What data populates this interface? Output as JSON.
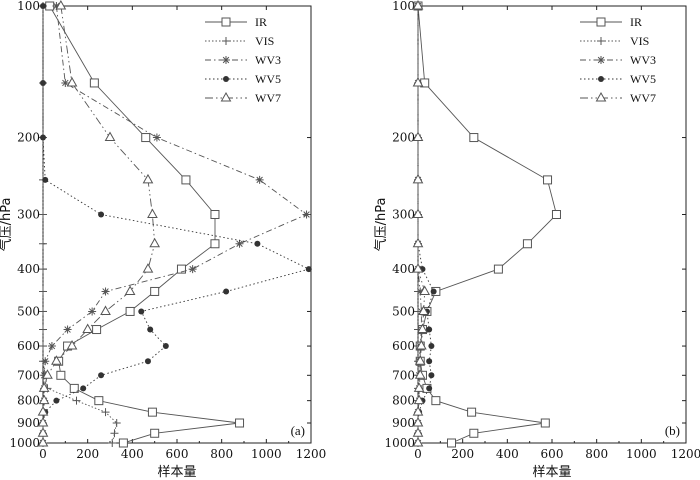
{
  "figure": {
    "ylabel": "气压/hPa",
    "xlabel": "样本量"
  },
  "legend_entries": [
    "IR",
    "VIS",
    "WV3",
    "WV5",
    "WV7"
  ],
  "series_styles": [
    {
      "name": "IR",
      "color": "#555555",
      "marker": "square",
      "dash": ""
    },
    {
      "name": "VIS",
      "color": "#555555",
      "marker": "plus",
      "dash": "1.5,2"
    },
    {
      "name": "WV3",
      "color": "#555555",
      "marker": "asterisk",
      "dash": "6,3,1.5,3"
    },
    {
      "name": "WV5",
      "color": "#333333",
      "marker": "dot",
      "dash": "1.5,2.5"
    },
    {
      "name": "WV7",
      "color": "#555555",
      "marker": "triangle",
      "dash": "8,3,1.5,3,1.5,3"
    }
  ],
  "chart_data": [
    {
      "type": "line",
      "panel_label": "(a)",
      "xlabel": "样本量",
      "ylabel": "气压/hPa",
      "xlim": [
        0,
        1200
      ],
      "ylim": [
        100,
        1000
      ],
      "yscale": "log",
      "inverted_y": true,
      "xticks": [
        0,
        200,
        400,
        600,
        800,
        1000,
        1200
      ],
      "yticks": [
        100,
        200,
        300,
        400,
        500,
        600,
        700,
        800,
        900,
        1000
      ],
      "legend_position": "top-right",
      "series": [
        {
          "name": "IR",
          "points": [
            [
              30,
              100
            ],
            [
              230,
              150
            ],
            [
              460,
              200
            ],
            [
              640,
              250
            ],
            [
              770,
              300
            ],
            [
              770,
              350
            ],
            [
              620,
              400
            ],
            [
              500,
              450
            ],
            [
              390,
              500
            ],
            [
              240,
              550
            ],
            [
              110,
              600
            ],
            [
              70,
              650
            ],
            [
              80,
              700
            ],
            [
              140,
              750
            ],
            [
              250,
              800
            ],
            [
              490,
              850
            ],
            [
              880,
              900
            ],
            [
              500,
              950
            ],
            [
              360,
              1000
            ]
          ]
        },
        {
          "name": "VIS",
          "points": [
            [
              0,
              100
            ],
            [
              0,
              150
            ],
            [
              0,
              200
            ],
            [
              0,
              250
            ],
            [
              0,
              300
            ],
            [
              0,
              350
            ],
            [
              0,
              400
            ],
            [
              0,
              450
            ],
            [
              0,
              500
            ],
            [
              0,
              550
            ],
            [
              0,
              600
            ],
            [
              0,
              650
            ],
            [
              10,
              700
            ],
            [
              20,
              750
            ],
            [
              150,
              800
            ],
            [
              280,
              850
            ],
            [
              330,
              900
            ],
            [
              320,
              950
            ],
            [
              310,
              1000
            ]
          ]
        },
        {
          "name": "WV3",
          "points": [
            [
              60,
              100
            ],
            [
              100,
              150
            ],
            [
              510,
              200
            ],
            [
              970,
              250
            ],
            [
              1180,
              300
            ],
            [
              880,
              350
            ],
            [
              670,
              400
            ],
            [
              280,
              450
            ],
            [
              220,
              500
            ],
            [
              110,
              550
            ],
            [
              40,
              600
            ],
            [
              10,
              650
            ],
            [
              5,
              700
            ],
            [
              5,
              750
            ],
            [
              5,
              800
            ],
            [
              5,
              850
            ],
            [
              0,
              900
            ],
            [
              0,
              950
            ],
            [
              0,
              1000
            ]
          ]
        },
        {
          "name": "WV5",
          "points": [
            [
              0,
              100
            ],
            [
              0,
              150
            ],
            [
              0,
              200
            ],
            [
              10,
              250
            ],
            [
              260,
              300
            ],
            [
              960,
              350
            ],
            [
              1190,
              400
            ],
            [
              820,
              450
            ],
            [
              440,
              500
            ],
            [
              480,
              550
            ],
            [
              550,
              600
            ],
            [
              470,
              650
            ],
            [
              260,
              700
            ],
            [
              180,
              750
            ],
            [
              60,
              800
            ],
            [
              10,
              850
            ],
            [
              0,
              900
            ],
            [
              0,
              950
            ],
            [
              0,
              1000
            ]
          ]
        },
        {
          "name": "WV7",
          "points": [
            [
              80,
              100
            ],
            [
              130,
              150
            ],
            [
              300,
              200
            ],
            [
              470,
              250
            ],
            [
              490,
              300
            ],
            [
              500,
              350
            ],
            [
              470,
              400
            ],
            [
              390,
              450
            ],
            [
              280,
              500
            ],
            [
              200,
              550
            ],
            [
              130,
              600
            ],
            [
              60,
              650
            ],
            [
              20,
              700
            ],
            [
              5,
              750
            ],
            [
              5,
              800
            ],
            [
              0,
              850
            ],
            [
              0,
              900
            ],
            [
              0,
              950
            ],
            [
              0,
              1000
            ]
          ]
        }
      ]
    },
    {
      "type": "line",
      "panel_label": "(b)",
      "xlabel": "样本量",
      "ylabel": "气压/hPa",
      "xlim": [
        0,
        1200
      ],
      "ylim": [
        100,
        1000
      ],
      "yscale": "log",
      "inverted_y": true,
      "xticks": [
        0,
        200,
        400,
        600,
        800,
        1000,
        1200
      ],
      "yticks": [
        100,
        200,
        300,
        400,
        500,
        600,
        700,
        800,
        900,
        1000
      ],
      "legend_position": "top-right",
      "series": [
        {
          "name": "IR",
          "points": [
            [
              0,
              100
            ],
            [
              30,
              150
            ],
            [
              250,
              200
            ],
            [
              580,
              250
            ],
            [
              620,
              300
            ],
            [
              490,
              350
            ],
            [
              360,
              400
            ],
            [
              80,
              450
            ],
            [
              40,
              500
            ],
            [
              20,
              550
            ],
            [
              10,
              600
            ],
            [
              10,
              650
            ],
            [
              20,
              700
            ],
            [
              40,
              750
            ],
            [
              80,
              800
            ],
            [
              240,
              850
            ],
            [
              570,
              900
            ],
            [
              250,
              950
            ],
            [
              150,
              1000
            ]
          ]
        },
        {
          "name": "VIS",
          "points": [
            [
              0,
              100
            ],
            [
              0,
              150
            ],
            [
              0,
              200
            ],
            [
              0,
              250
            ],
            [
              0,
              300
            ],
            [
              0,
              350
            ],
            [
              0,
              400
            ],
            [
              0,
              450
            ],
            [
              0,
              500
            ],
            [
              0,
              550
            ],
            [
              0,
              600
            ],
            [
              0,
              650
            ],
            [
              0,
              700
            ],
            [
              0,
              750
            ],
            [
              0,
              800
            ],
            [
              0,
              850
            ],
            [
              0,
              900
            ],
            [
              0,
              950
            ],
            [
              0,
              1000
            ]
          ]
        },
        {
          "name": "WV3",
          "points": [
            [
              0,
              100
            ],
            [
              0,
              150
            ],
            [
              0,
              200
            ],
            [
              0,
              250
            ],
            [
              0,
              300
            ],
            [
              0,
              350
            ],
            [
              0,
              400
            ],
            [
              10,
              450
            ],
            [
              15,
              500
            ],
            [
              15,
              550
            ],
            [
              10,
              600
            ],
            [
              5,
              650
            ],
            [
              5,
              700
            ],
            [
              5,
              750
            ],
            [
              5,
              800
            ],
            [
              0,
              850
            ],
            [
              0,
              900
            ],
            [
              0,
              950
            ],
            [
              0,
              1000
            ]
          ]
        },
        {
          "name": "WV5",
          "points": [
            [
              0,
              100
            ],
            [
              0,
              150
            ],
            [
              0,
              200
            ],
            [
              0,
              250
            ],
            [
              0,
              300
            ],
            [
              0,
              350
            ],
            [
              20,
              400
            ],
            [
              70,
              450
            ],
            [
              40,
              500
            ],
            [
              50,
              550
            ],
            [
              60,
              600
            ],
            [
              50,
              650
            ],
            [
              60,
              700
            ],
            [
              50,
              750
            ],
            [
              20,
              800
            ],
            [
              5,
              850
            ],
            [
              0,
              900
            ],
            [
              0,
              950
            ],
            [
              0,
              1000
            ]
          ]
        },
        {
          "name": "WV7",
          "points": [
            [
              0,
              100
            ],
            [
              0,
              150
            ],
            [
              0,
              200
            ],
            [
              0,
              250
            ],
            [
              0,
              300
            ],
            [
              0,
              350
            ],
            [
              0,
              400
            ],
            [
              30,
              450
            ],
            [
              25,
              500
            ],
            [
              20,
              550
            ],
            [
              15,
              600
            ],
            [
              10,
              650
            ],
            [
              10,
              700
            ],
            [
              5,
              750
            ],
            [
              5,
              800
            ],
            [
              0,
              850
            ],
            [
              0,
              900
            ],
            [
              0,
              950
            ],
            [
              0,
              1000
            ]
          ]
        }
      ]
    }
  ]
}
